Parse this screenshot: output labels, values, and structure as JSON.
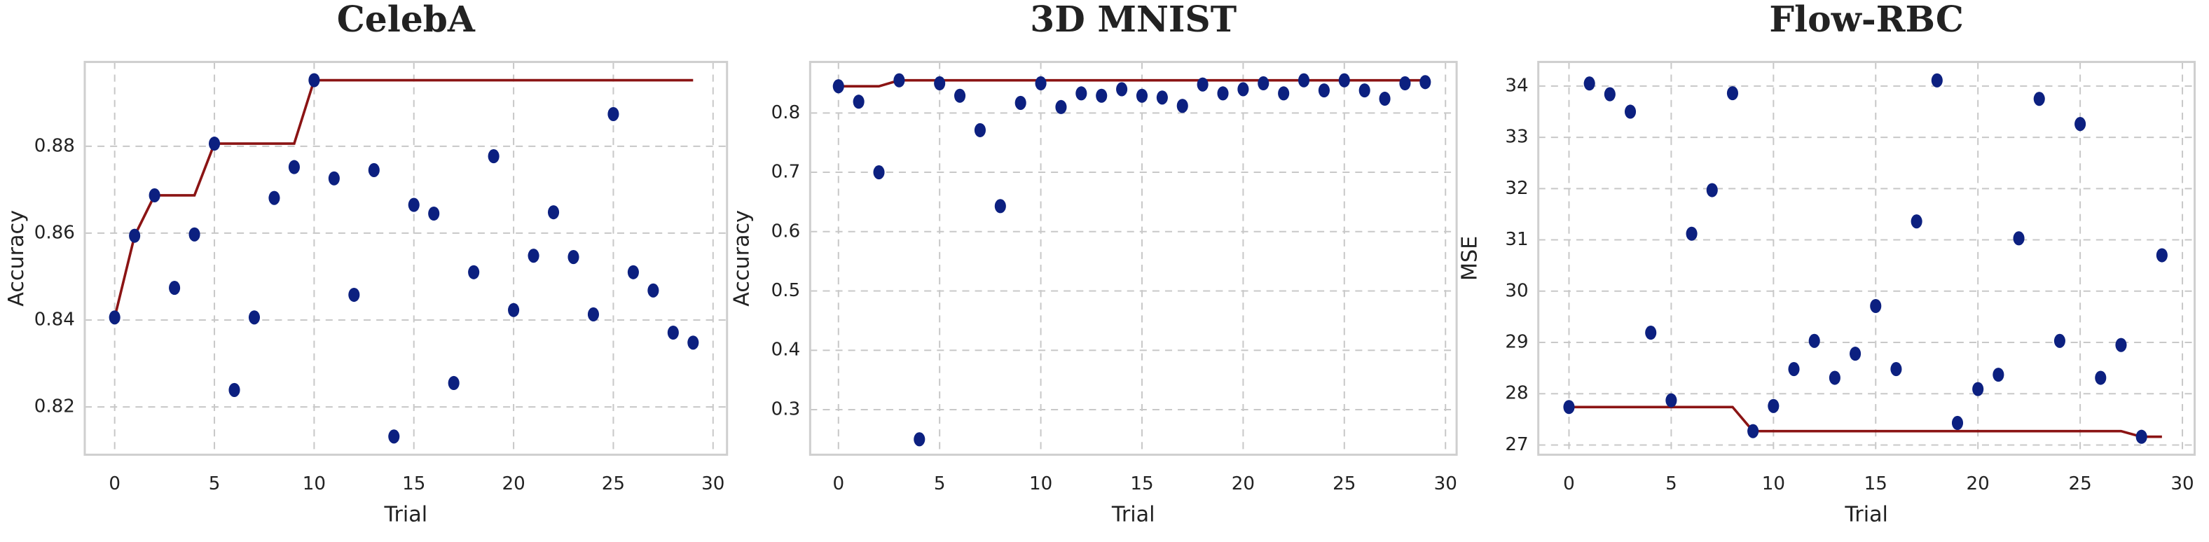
{
  "chart_data": [
    {
      "type": "scatter",
      "title": "CelebA",
      "x_label": "Trial",
      "y_label": "Accuracy",
      "x": [
        0,
        1,
        2,
        3,
        4,
        5,
        6,
        7,
        8,
        9,
        10,
        11,
        12,
        13,
        14,
        15,
        16,
        17,
        18,
        19,
        20,
        21,
        22,
        23,
        24,
        25,
        26,
        27,
        28,
        29
      ],
      "values": [
        0.8406,
        0.8594,
        0.8687,
        0.8474,
        0.8597,
        0.8806,
        0.8239,
        0.8406,
        0.8681,
        0.8752,
        0.8952,
        0.8726,
        0.8458,
        0.8745,
        0.8132,
        0.8665,
        0.8645,
        0.8255,
        0.851,
        0.8777,
        0.8423,
        0.8548,
        0.8648,
        0.8545,
        0.8413,
        0.8874,
        0.851,
        0.8468,
        0.8371,
        0.8348
      ],
      "best_values": [
        0.8406,
        0.8594,
        0.8687,
        0.8687,
        0.8687,
        0.8806,
        0.8806,
        0.8806,
        0.8806,
        0.8806,
        0.8952,
        0.8952,
        0.8952,
        0.8952,
        0.8952,
        0.8952,
        0.8952,
        0.8952,
        0.8952,
        0.8952,
        0.8952,
        0.8952,
        0.8952,
        0.8952,
        0.8952,
        0.8952,
        0.8952,
        0.8952,
        0.8952,
        0.8952
      ],
      "color": "#0c2080",
      "best_color": "#8b1414",
      "xlim": [
        -1.5,
        30.7
      ],
      "ylim": [
        0.809,
        0.8994
      ],
      "xticks": [
        0,
        5,
        10,
        15,
        20,
        25,
        30
      ],
      "yticks": [
        0.82,
        0.84,
        0.86,
        0.88
      ],
      "grid": true
    },
    {
      "type": "scatter",
      "title": "3D MNIST",
      "x_label": "Trial",
      "y_label": "Accuracy",
      "x": [
        0,
        1,
        2,
        3,
        4,
        5,
        6,
        7,
        8,
        9,
        10,
        11,
        12,
        13,
        14,
        15,
        16,
        17,
        18,
        19,
        20,
        21,
        22,
        23,
        24,
        25,
        26,
        27,
        28,
        29
      ],
      "values": [
        0.845,
        0.819,
        0.7,
        0.855,
        0.25,
        0.85,
        0.829,
        0.771,
        0.643,
        0.817,
        0.85,
        0.81,
        0.833,
        0.829,
        0.84,
        0.829,
        0.826,
        0.812,
        0.848,
        0.833,
        0.84,
        0.85,
        0.833,
        0.855,
        0.838,
        0.855,
        0.838,
        0.824,
        0.85,
        0.852
      ],
      "best_values": [
        0.845,
        0.845,
        0.845,
        0.855,
        0.855,
        0.855,
        0.855,
        0.855,
        0.855,
        0.855,
        0.855,
        0.855,
        0.855,
        0.855,
        0.855,
        0.855,
        0.855,
        0.855,
        0.855,
        0.855,
        0.855,
        0.855,
        0.855,
        0.855,
        0.855,
        0.855,
        0.855,
        0.855,
        0.855,
        0.855
      ],
      "color": "#0c2080",
      "best_color": "#8b1414",
      "xlim": [
        -1.4,
        30.55
      ],
      "ylim": [
        0.224,
        0.886
      ],
      "xticks": [
        0,
        5,
        10,
        15,
        20,
        25,
        30
      ],
      "yticks": [
        0.3,
        0.4,
        0.5,
        0.6,
        0.7,
        0.8
      ],
      "grid": true
    },
    {
      "type": "scatter",
      "title": "Flow-RBC",
      "x_label": "Trial",
      "y_label": "MSE",
      "x": [
        0,
        1,
        2,
        3,
        4,
        5,
        6,
        7,
        8,
        9,
        10,
        11,
        12,
        13,
        14,
        15,
        16,
        17,
        18,
        19,
        20,
        21,
        22,
        23,
        24,
        25,
        26,
        27,
        28,
        29
      ],
      "values": [
        27.74,
        34.05,
        33.84,
        33.5,
        29.19,
        27.87,
        31.12,
        31.97,
        33.86,
        27.27,
        27.76,
        28.48,
        29.03,
        28.31,
        28.78,
        29.71,
        28.48,
        31.36,
        34.11,
        27.43,
        28.09,
        28.37,
        31.03,
        33.75,
        29.03,
        33.26,
        28.31,
        28.95,
        27.16,
        30.7
      ],
      "best_values": [
        27.74,
        27.74,
        27.74,
        27.74,
        27.74,
        27.74,
        27.74,
        27.74,
        27.74,
        27.27,
        27.27,
        27.27,
        27.27,
        27.27,
        27.27,
        27.27,
        27.27,
        27.27,
        27.27,
        27.27,
        27.27,
        27.27,
        27.27,
        27.27,
        27.27,
        27.27,
        27.27,
        27.27,
        27.16,
        27.16
      ],
      "color": "#0c2080",
      "best_color": "#8b1414",
      "xlim": [
        -1.5,
        30.6
      ],
      "ylim": [
        26.81,
        34.47
      ],
      "xticks": [
        0,
        5,
        10,
        15,
        20,
        25,
        30
      ],
      "yticks": [
        27,
        28,
        29,
        30,
        31,
        32,
        33,
        34
      ],
      "grid": true
    }
  ]
}
